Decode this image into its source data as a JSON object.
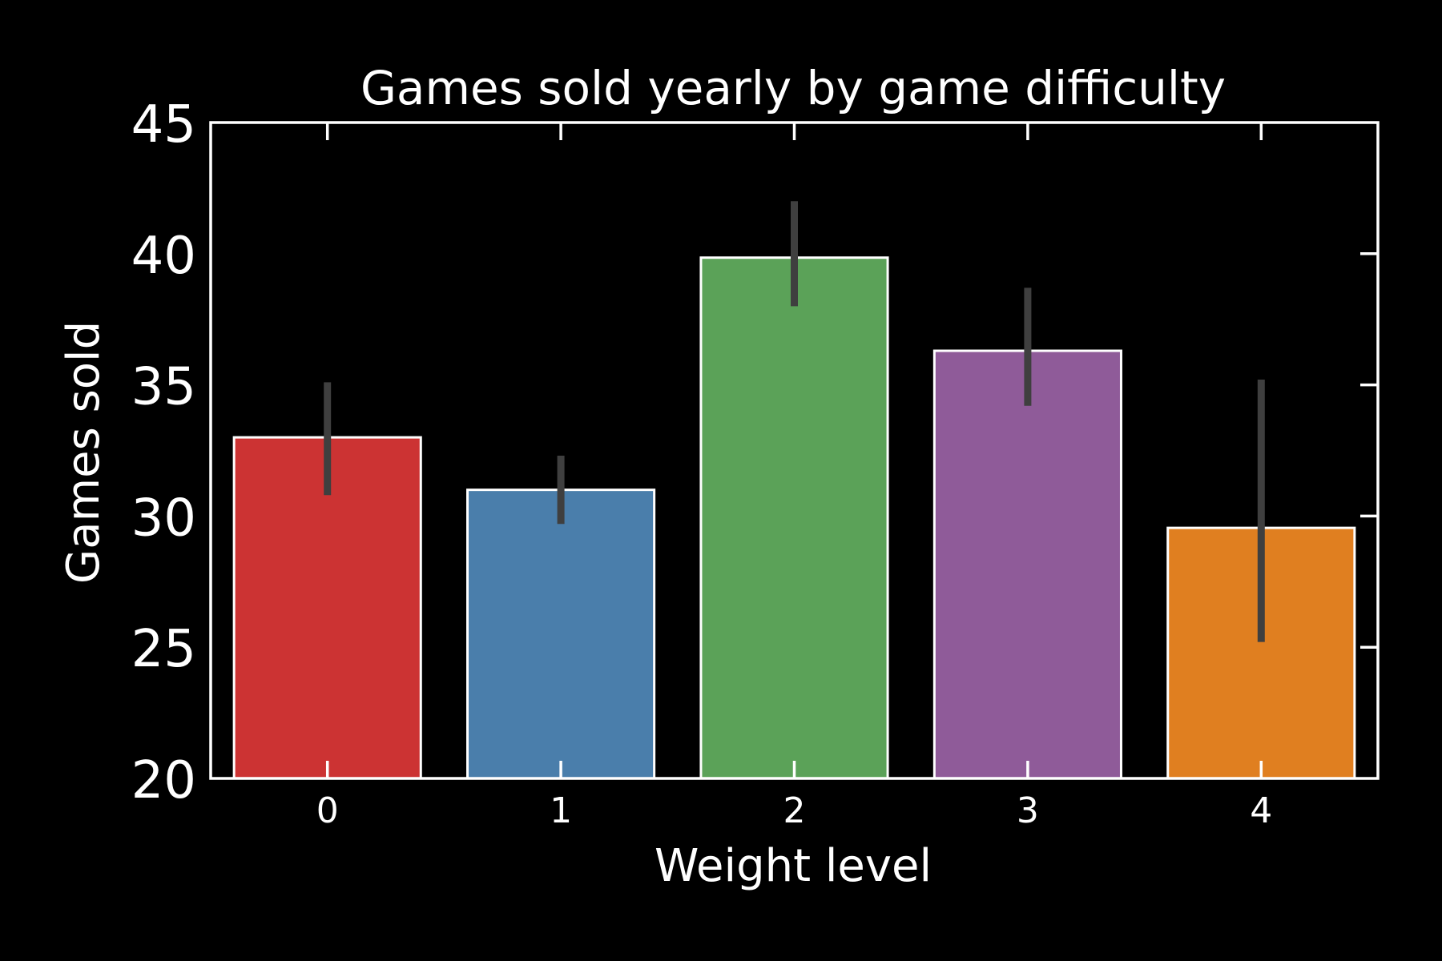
{
  "chart_data": {
    "type": "bar",
    "title": "Games sold yearly by game difficulty",
    "xlabel": "Weight level",
    "ylabel": "Games sold",
    "categories": [
      "0",
      "1",
      "2",
      "3",
      "4"
    ],
    "values": [
      33.0,
      31.0,
      39.85,
      36.3,
      29.55
    ],
    "error_low": [
      30.8,
      29.7,
      38.0,
      34.2,
      25.2
    ],
    "error_high": [
      35.1,
      32.3,
      42.0,
      38.7,
      35.2
    ],
    "ylim": [
      20,
      45
    ],
    "yticks": [
      "20",
      "25",
      "30",
      "35",
      "40",
      "45"
    ],
    "grid": false,
    "bar_colors": [
      "#cc3333",
      "#4a7eab",
      "#5ba258",
      "#8f5b99",
      "#e07f20"
    ],
    "bar_edge_color": "#ffffff",
    "error_color": "#3f3f3f",
    "background": "#000000",
    "axis_color": "#ffffff"
  }
}
